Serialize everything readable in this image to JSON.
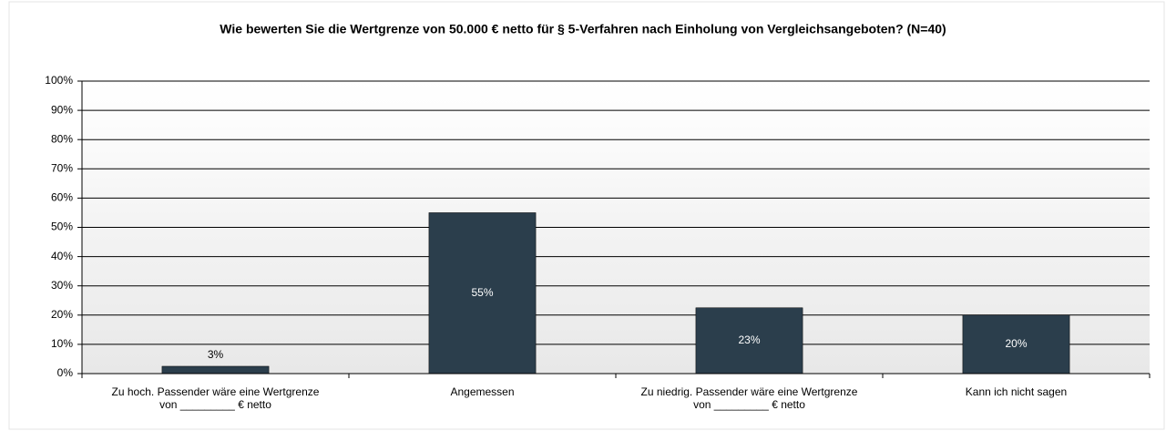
{
  "chart_data": {
    "type": "bar",
    "title": "Wie bewerten Sie die Wertgrenze von 50.000 € netto für § 5-Verfahren nach Einholung von Vergleichsangeboten? (N=40)",
    "categories": [
      "Zu hoch. Passender wäre eine Wertgrenze\nvon _________ € netto",
      "Angemessen",
      "Zu niedrig. Passender wäre eine Wertgrenze\nvon _________ € netto",
      "Kann ich nicht sagen"
    ],
    "values": [
      2.5,
      55,
      22.5,
      20
    ],
    "value_labels": [
      "3%",
      "55%",
      "23%",
      "20%"
    ],
    "color": "#2b3e4c",
    "ylim": [
      0,
      100
    ],
    "yticks": [
      {
        "value": 0,
        "label": "0%"
      },
      {
        "value": 10,
        "label": "10%"
      },
      {
        "value": 20,
        "label": "20%"
      },
      {
        "value": 30,
        "label": "30%"
      },
      {
        "value": 40,
        "label": "40%"
      },
      {
        "value": 50,
        "label": "50%"
      },
      {
        "value": 60,
        "label": "60%"
      },
      {
        "value": 70,
        "label": "70%"
      },
      {
        "value": 80,
        "label": "80%"
      },
      {
        "value": 90,
        "label": "90%"
      },
      {
        "value": 100,
        "label": "100%"
      }
    ],
    "grid": true
  }
}
